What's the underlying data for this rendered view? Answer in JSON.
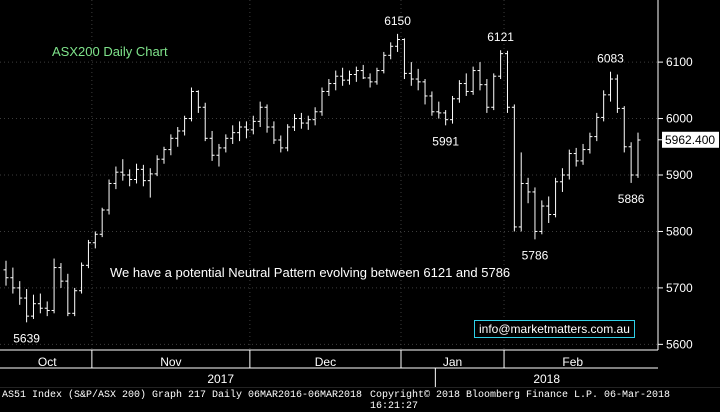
{
  "chart_data": {
    "type": "ohlc",
    "title": "ASX200 Daily Chart",
    "annotation": "We have a potential Neutral Pattern evolving between 6121 and 5786",
    "contact": "info@marketmatters.com.au",
    "ylim": [
      5590,
      6210
    ],
    "y_ticks": [
      5600,
      5700,
      5800,
      5900,
      6000,
      6100
    ],
    "y_tick_labels": [
      "5600",
      "5700",
      "5800",
      "5900",
      "6000",
      "6100"
    ],
    "x_months": [
      "Oct",
      "Nov",
      "Dec",
      "Jan",
      "Feb"
    ],
    "x_years": [
      "2017",
      "2018"
    ],
    "last_price": "5962.400",
    "price_labels": [
      "5639",
      "6150",
      "6121",
      "6083",
      "5991",
      "5786",
      "5886"
    ],
    "grid": true,
    "values": [
      [
        5732,
        5748,
        5704,
        5718
      ],
      [
        5718,
        5736,
        5690,
        5700
      ],
      [
        5700,
        5712,
        5670,
        5682
      ],
      [
        5682,
        5698,
        5639,
        5650
      ],
      [
        5650,
        5688,
        5645,
        5672
      ],
      [
        5672,
        5690,
        5655,
        5664
      ],
      [
        5664,
        5676,
        5650,
        5660
      ],
      [
        5660,
        5752,
        5655,
        5736
      ],
      [
        5736,
        5744,
        5700,
        5712
      ],
      [
        5712,
        5725,
        5650,
        5655
      ],
      [
        5655,
        5700,
        5650,
        5695
      ],
      [
        5695,
        5745,
        5690,
        5740
      ],
      [
        5740,
        5785,
        5735,
        5780
      ],
      [
        5780,
        5800,
        5770,
        5795
      ],
      [
        5795,
        5842,
        5790,
        5838
      ],
      [
        5838,
        5892,
        5830,
        5885
      ],
      [
        5885,
        5915,
        5875,
        5905
      ],
      [
        5905,
        5928,
        5890,
        5900
      ],
      [
        5900,
        5910,
        5880,
        5892
      ],
      [
        5892,
        5920,
        5885,
        5910
      ],
      [
        5910,
        5918,
        5880,
        5890
      ],
      [
        5890,
        5912,
        5860,
        5902
      ],
      [
        5902,
        5935,
        5898,
        5928
      ],
      [
        5928,
        5950,
        5920,
        5945
      ],
      [
        5945,
        5972,
        5935,
        5965
      ],
      [
        5965,
        5985,
        5950,
        5978
      ],
      [
        5978,
        6005,
        5970,
        6000
      ],
      [
        6000,
        6055,
        5995,
        6048
      ],
      [
        6048,
        6050,
        6010,
        6020
      ],
      [
        6020,
        6028,
        5960,
        5965
      ],
      [
        5965,
        5978,
        5925,
        5935
      ],
      [
        5935,
        5955,
        5915,
        5948
      ],
      [
        5948,
        5972,
        5940,
        5965
      ],
      [
        5965,
        5988,
        5955,
        5975
      ],
      [
        5975,
        5995,
        5960,
        5985
      ],
      [
        5985,
        5995,
        5965,
        5980
      ],
      [
        5980,
        6005,
        5972,
        5995
      ],
      [
        5995,
        6030,
        5985,
        6020
      ],
      [
        6020,
        6025,
        5975,
        5985
      ],
      [
        5985,
        5995,
        5955,
        5962
      ],
      [
        5962,
        5970,
        5940,
        5948
      ],
      [
        5948,
        5990,
        5942,
        5985
      ],
      [
        5985,
        6008,
        5978,
        6000
      ],
      [
        6000,
        6010,
        5982,
        5992
      ],
      [
        5992,
        6005,
        5980,
        5998
      ],
      [
        5998,
        6020,
        5988,
        6012
      ],
      [
        6012,
        6055,
        6005,
        6048
      ],
      [
        6048,
        6070,
        6040,
        6062
      ],
      [
        6062,
        6085,
        6050,
        6075
      ],
      [
        6075,
        6090,
        6058,
        6068
      ],
      [
        6068,
        6085,
        6060,
        6078
      ],
      [
        6078,
        6092,
        6065,
        6085
      ],
      [
        6085,
        6095,
        6070,
        6072
      ],
      [
        6072,
        6080,
        6055,
        6065
      ],
      [
        6065,
        6090,
        6060,
        6085
      ],
      [
        6085,
        6118,
        6080,
        6112
      ],
      [
        6112,
        6135,
        6105,
        6128
      ],
      [
        6128,
        6150,
        6118,
        6140
      ],
      [
        6140,
        6142,
        6070,
        6080
      ],
      [
        6080,
        6100,
        6058,
        6070
      ],
      [
        6070,
        6088,
        6050,
        6065
      ],
      [
        6065,
        6070,
        6025,
        6040
      ],
      [
        6040,
        6048,
        6005,
        6012
      ],
      [
        6012,
        6030,
        6000,
        6010
      ],
      [
        6010,
        6015,
        5988,
        5998
      ],
      [
        5998,
        6040,
        5991,
        6035
      ],
      [
        6035,
        6068,
        6028,
        6062
      ],
      [
        6062,
        6080,
        6040,
        6048
      ],
      [
        6048,
        6092,
        6042,
        6085
      ],
      [
        6085,
        6100,
        6050,
        6060
      ],
      [
        6060,
        6070,
        6010,
        6020
      ],
      [
        6020,
        6080,
        6015,
        6075
      ],
      [
        6075,
        6121,
        6070,
        6115
      ],
      [
        6115,
        6120,
        6010,
        6020
      ],
      [
        6020,
        6025,
        5800,
        5808
      ],
      [
        5808,
        5940,
        5800,
        5885
      ],
      [
        5885,
        5895,
        5850,
        5870
      ],
      [
        5870,
        5878,
        5786,
        5800
      ],
      [
        5800,
        5855,
        5795,
        5845
      ],
      [
        5845,
        5862,
        5815,
        5830
      ],
      [
        5830,
        5895,
        5825,
        5888
      ],
      [
        5888,
        5912,
        5870,
        5900
      ],
      [
        5900,
        5945,
        5892,
        5938
      ],
      [
        5938,
        5948,
        5915,
        5925
      ],
      [
        5925,
        5955,
        5918,
        5945
      ],
      [
        5945,
        5975,
        5938,
        5968
      ],
      [
        5968,
        6010,
        5960,
        6002
      ],
      [
        6002,
        6050,
        5995,
        6042
      ],
      [
        6042,
        6083,
        6030,
        6070
      ],
      [
        6070,
        6078,
        6010,
        6018
      ],
      [
        6018,
        6022,
        5940,
        5950
      ],
      [
        5950,
        5958,
        5886,
        5900
      ],
      [
        5900,
        5975,
        5895,
        5962
      ]
    ]
  },
  "footer": {
    "left": "AS51 Index (S&P/ASX 200) Graph 217  Daily 06MAR2016-06MAR2018",
    "right": "Copyright© 2018 Bloomberg Finance L.P.   06-Mar-2018 16:21:27"
  },
  "colors": {
    "bar": "#ffffff",
    "title": "#7fe38b",
    "axis": "#ffffff",
    "box_border": "#2fd0e8",
    "grid": "#3c3c3c"
  }
}
